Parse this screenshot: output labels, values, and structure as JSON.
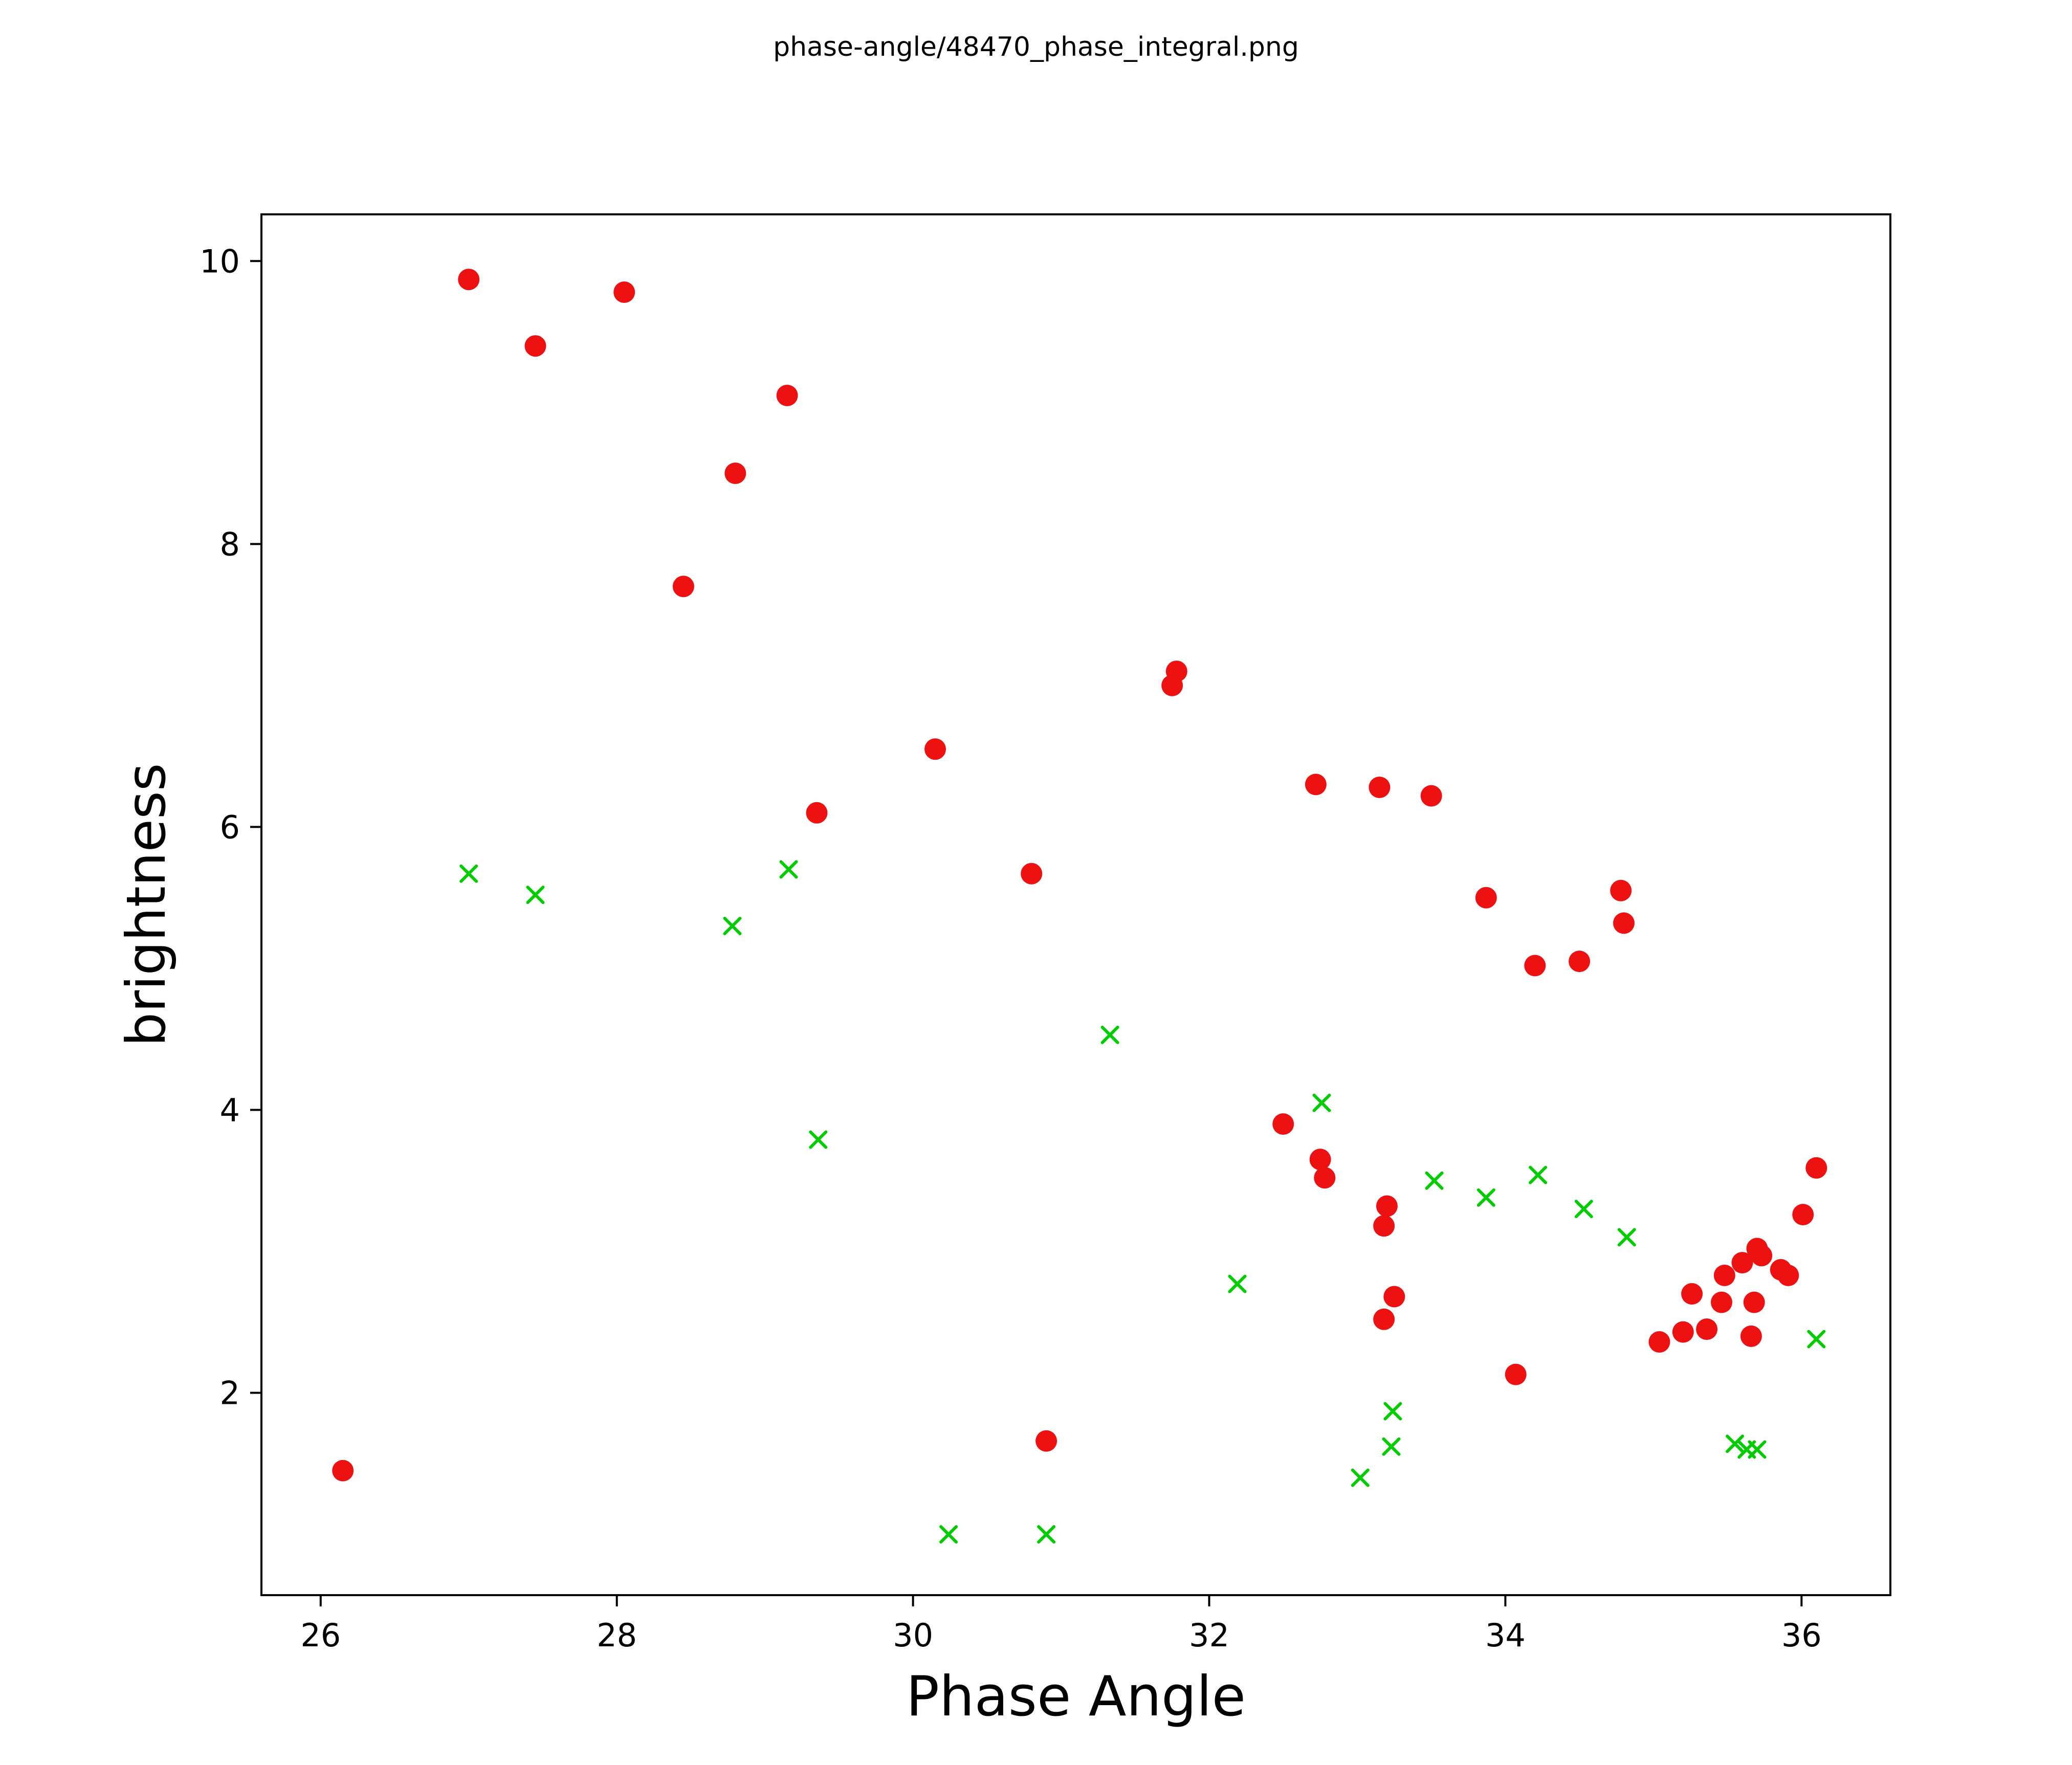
{
  "chart_data": {
    "type": "scatter",
    "title": "phase-angle/48470_phase_integral.png",
    "xlabel": "Phase Angle",
    "ylabel": "brightness",
    "xlim": [
      25.6,
      36.6
    ],
    "ylim": [
      0.57,
      10.33
    ],
    "xticks": [
      26,
      28,
      30,
      32,
      34,
      36
    ],
    "yticks": [
      2,
      4,
      6,
      8,
      10
    ],
    "grid": false,
    "legend": "none",
    "series": [
      {
        "name": "red-circles",
        "marker": "circle",
        "color": "#ee1111",
        "points": [
          [
            26.15,
            1.45
          ],
          [
            27.0,
            9.87
          ],
          [
            27.45,
            9.4
          ],
          [
            28.05,
            9.78
          ],
          [
            28.45,
            7.7
          ],
          [
            28.8,
            8.5
          ],
          [
            29.15,
            9.05
          ],
          [
            29.35,
            6.1
          ],
          [
            30.15,
            6.55
          ],
          [
            30.8,
            5.67
          ],
          [
            30.9,
            1.66
          ],
          [
            31.75,
            7.0
          ],
          [
            31.78,
            7.1
          ],
          [
            32.5,
            3.9
          ],
          [
            32.72,
            6.3
          ],
          [
            32.75,
            3.65
          ],
          [
            32.78,
            3.52
          ],
          [
            33.15,
            6.28
          ],
          [
            33.18,
            3.18
          ],
          [
            33.2,
            3.32
          ],
          [
            33.18,
            2.52
          ],
          [
            33.25,
            2.68
          ],
          [
            33.5,
            6.22
          ],
          [
            33.87,
            5.5
          ],
          [
            34.07,
            2.13
          ],
          [
            34.2,
            5.02
          ],
          [
            34.5,
            5.05
          ],
          [
            34.78,
            5.55
          ],
          [
            34.8,
            5.32
          ],
          [
            35.04,
            2.36
          ],
          [
            35.2,
            2.43
          ],
          [
            35.26,
            2.7
          ],
          [
            35.36,
            2.45
          ],
          [
            35.46,
            2.64
          ],
          [
            35.48,
            2.83
          ],
          [
            35.6,
            2.92
          ],
          [
            35.66,
            2.4
          ],
          [
            35.68,
            2.64
          ],
          [
            35.7,
            3.02
          ],
          [
            35.73,
            2.97
          ],
          [
            35.86,
            2.87
          ],
          [
            35.91,
            2.83
          ],
          [
            36.01,
            3.26
          ],
          [
            36.1,
            3.59
          ]
        ]
      },
      {
        "name": "green-crosses",
        "marker": "x",
        "color": "#00cc00",
        "points": [
          [
            27.0,
            5.67
          ],
          [
            27.45,
            5.52
          ],
          [
            28.78,
            5.3
          ],
          [
            29.16,
            5.7
          ],
          [
            29.36,
            3.79
          ],
          [
            30.24,
            1.0
          ],
          [
            30.9,
            1.0
          ],
          [
            31.33,
            4.53
          ],
          [
            32.19,
            2.77
          ],
          [
            32.76,
            4.05
          ],
          [
            33.02,
            1.4
          ],
          [
            33.23,
            1.62
          ],
          [
            33.24,
            1.87
          ],
          [
            33.52,
            3.5
          ],
          [
            33.87,
            3.38
          ],
          [
            34.22,
            3.54
          ],
          [
            34.53,
            3.3
          ],
          [
            34.82,
            3.1
          ],
          [
            35.55,
            1.64
          ],
          [
            35.63,
            1.6
          ],
          [
            35.7,
            1.6
          ],
          [
            36.1,
            2.38
          ]
        ]
      }
    ]
  }
}
